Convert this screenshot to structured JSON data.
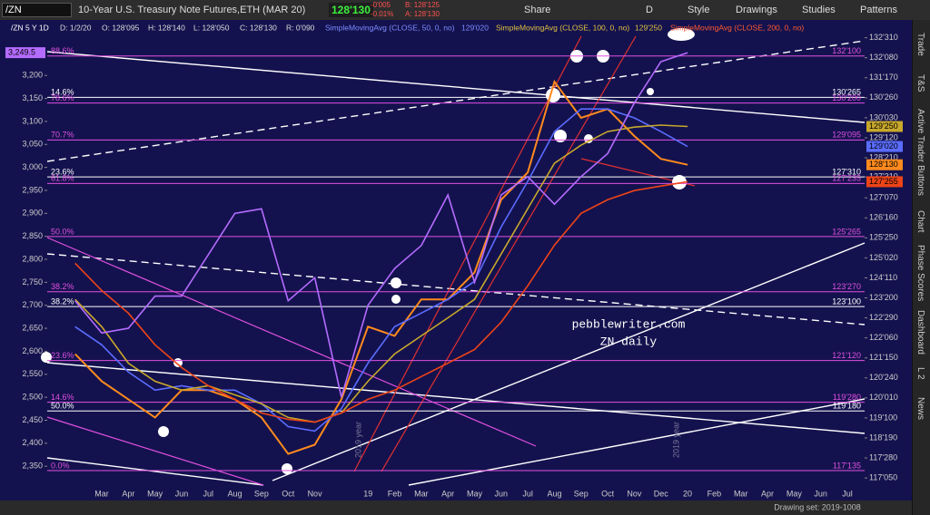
{
  "toolbar": {
    "symbol": "/ZN",
    "description": "10-Year U.S. Treasury Note Futures,ETH (MAR 20)",
    "price": "128'130",
    "change": "-0'005",
    "change_pct": "-0.01%",
    "bid": "B: 128'125",
    "ask": "A: 128'130",
    "buttons": [
      "Share",
      "D",
      "Style",
      "Drawings",
      "Studies",
      "Patterns"
    ]
  },
  "info_bar": {
    "date": "D: 1/2/20",
    "open": "O: 128'095",
    "high": "H: 128'140",
    "low": "L: 128'050",
    "close": "C: 128'130",
    "range": "R: 0'090"
  },
  "side_tabs": [
    "Trade",
    "T&S",
    "Active Trader",
    "Buttons",
    "Chart",
    "Phase Scores",
    "Dashboard",
    "L 2",
    "News"
  ],
  "watermark": [
    "pebblewriter.com",
    "ZN daily"
  ],
  "status": "Drawing set: 2019-1008",
  "chart_data": {
    "type": "line",
    "categories": [
      null,
      "Mar",
      "Apr",
      "May",
      "Jun",
      "Jul",
      "Aug",
      "Sep",
      "Oct",
      "Nov",
      null,
      "19",
      "Feb",
      "Mar",
      "Apr",
      "May",
      "Jun",
      "Jul",
      "Aug",
      "Sep",
      "Oct",
      "Nov",
      "Dec",
      "20",
      "Feb",
      "Mar",
      "Apr",
      "May",
      "Jun",
      "Jul"
    ],
    "series": [
      {
        "name": "/ZN 5 Y 1D",
        "color": "#ff8a1e",
        "values": [
          121.61,
          120.63,
          119.98,
          119.33,
          120.31,
          120.31,
          119.98,
          119.33,
          118.02,
          118.35,
          119.98,
          122.59,
          122.26,
          123.57,
          123.57,
          124.54,
          127.15,
          128.13,
          131.39,
          130.09,
          130.41,
          129.44,
          128.62,
          128.40625,
          null,
          null,
          null,
          null,
          null,
          null
        ],
        "value_labels": [
          null,
          null,
          null,
          null,
          null,
          null,
          null,
          null,
          null,
          null,
          null,
          null,
          null,
          null,
          null,
          null,
          null,
          null,
          null,
          null,
          null,
          null,
          null,
          "128'130",
          null,
          null,
          null,
          null,
          null,
          null
        ]
      },
      {
        "name": "SimpleMovingAvg (CLOSE, 50, 0, no)",
        "color": "#5a6cff",
        "values": [
          122.59,
          121.94,
          120.96,
          120.31,
          120.47,
          120.31,
          120.31,
          119.82,
          119.0,
          118.84,
          119.65,
          121.28,
          122.59,
          123.08,
          123.57,
          124.22,
          126.17,
          127.81,
          129.6,
          130.41,
          130.41,
          130.09,
          129.6,
          129.0625,
          null,
          null,
          null,
          null,
          null,
          null
        ],
        "value_labels": [
          null,
          null,
          null,
          null,
          null,
          null,
          null,
          null,
          null,
          null,
          null,
          null,
          null,
          null,
          null,
          null,
          null,
          null,
          null,
          null,
          null,
          null,
          null,
          "129'020",
          null,
          null,
          null,
          null,
          null,
          null
        ]
      },
      {
        "name": "SimpleMovingAvg (CLOSE, 100, 0, no)",
        "color": "#c8a82c",
        "values": [
          123.57,
          122.59,
          121.28,
          120.63,
          120.31,
          120.47,
          120.14,
          119.82,
          119.33,
          119.16,
          119.49,
          120.63,
          121.61,
          122.26,
          122.91,
          123.57,
          125.2,
          126.83,
          128.46,
          129.11,
          129.6,
          129.76,
          129.83,
          129.78125,
          null,
          null,
          null,
          null,
          null,
          null
        ],
        "value_labels": [
          null,
          null,
          null,
          null,
          null,
          null,
          null,
          null,
          null,
          null,
          null,
          null,
          null,
          null,
          null,
          null,
          null,
          null,
          null,
          null,
          null,
          null,
          null,
          "129'250",
          null,
          null,
          null,
          null,
          null,
          null
        ]
      },
      {
        "name": "SimpleMovingAvg (CLOSE, 200, 0, no)",
        "color": "#ee4418",
        "values": [
          124.87,
          123.89,
          123.08,
          121.94,
          121.12,
          120.47,
          119.98,
          119.49,
          119.26,
          119.16,
          119.49,
          119.98,
          120.31,
          120.8,
          121.28,
          121.77,
          122.75,
          124.06,
          125.52,
          126.66,
          127.15,
          127.48,
          127.64,
          127.796875,
          null,
          null,
          null,
          null,
          null,
          null
        ],
        "value_labels": [
          null,
          null,
          null,
          null,
          null,
          null,
          null,
          null,
          null,
          null,
          null,
          null,
          null,
          null,
          null,
          null,
          null,
          null,
          null,
          null,
          null,
          null,
          null,
          "127'255",
          null,
          null,
          null,
          null,
          null,
          null
        ]
      },
      {
        "axis": "y2",
        "color": "#b46cff",
        "values": [
          2710,
          2640,
          2650,
          2720,
          2720,
          2810,
          2900,
          2910,
          2710,
          2760,
          2500,
          2700,
          2780,
          2830,
          2940,
          2750,
          2940,
          2980,
          2920,
          2980,
          3030,
          3140,
          3230,
          3249.5,
          null,
          null,
          null,
          null,
          null,
          null
        ],
        "value_labels": [
          null,
          null,
          null,
          null,
          null,
          null,
          null,
          null,
          null,
          null,
          null,
          null,
          null,
          null,
          null,
          null,
          null,
          null,
          null,
          null,
          null,
          null,
          null,
          "3,249.5",
          null,
          null,
          null,
          null,
          null,
          null
        ]
      }
    ],
    "ylim": [
      116.9,
      133.25
    ],
    "yticks": [
      {
        "value": 132.96875,
        "label": "132'310"
      },
      {
        "value": 132.25,
        "label": "132'080"
      },
      {
        "value": 131.53125,
        "label": "131'170"
      },
      {
        "value": 130.8125,
        "label": "130'260"
      },
      {
        "value": 130.09375,
        "label": "130'030"
      },
      {
        "value": 129.375,
        "label": "129'120"
      },
      {
        "value": 128.65625,
        "label": "128'210"
      },
      {
        "value": 127.96875,
        "label": "127'310"
      },
      {
        "value": 127.21875,
        "label": "127'070"
      },
      {
        "value": 126.5,
        "label": "126'160"
      },
      {
        "value": 125.78125,
        "label": "125'250"
      },
      {
        "value": 125.0625,
        "label": "125'020"
      },
      {
        "value": 124.34375,
        "label": "124'110"
      },
      {
        "value": 123.625,
        "label": "123'200"
      },
      {
        "value": 122.90625,
        "label": "122'290"
      },
      {
        "value": 122.1875,
        "label": "122'060"
      },
      {
        "value": 121.46875,
        "label": "121'150"
      },
      {
        "value": 120.75,
        "label": "120'240"
      },
      {
        "value": 120.03125,
        "label": "120'010"
      },
      {
        "value": 119.3125,
        "label": "119'100"
      },
      {
        "value": 118.59375,
        "label": "118'190"
      },
      {
        "value": 117.875,
        "label": "117'280"
      },
      {
        "value": 117.15625,
        "label": "117'050"
      }
    ],
    "y2lim": [
      2309,
      3299
    ],
    "y2ticks": [
      {
        "value": 3200,
        "label": "3,200"
      },
      {
        "value": 3150,
        "label": "3,150"
      },
      {
        "value": 3100,
        "label": "3,100"
      },
      {
        "value": 3050,
        "label": "3,050"
      },
      {
        "value": 3000,
        "label": "3,000"
      },
      {
        "value": 2950,
        "label": "2,950"
      },
      {
        "value": 2900,
        "label": "2,900"
      },
      {
        "value": 2850,
        "label": "2,850"
      },
      {
        "value": 2800,
        "label": "2,800"
      },
      {
        "value": 2750,
        "label": "2,750"
      },
      {
        "value": 2700,
        "label": "2,700"
      },
      {
        "value": 2650,
        "label": "2,650"
      },
      {
        "value": 2600,
        "label": "2,600"
      },
      {
        "value": 2550,
        "label": "2,550"
      },
      {
        "value": 2500,
        "label": "2,500"
      },
      {
        "value": 2450,
        "label": "2,450"
      },
      {
        "value": 2400,
        "label": "2,400"
      },
      {
        "value": 2350,
        "label": "2,350"
      }
    ],
    "levels": [
      {
        "label": "88.6%",
        "price_label": "132'100",
        "value": 132.3125,
        "color": "#e050e0"
      },
      {
        "label": "14.6%",
        "price_label": "130'265",
        "value": 130.828125,
        "color": "#ffffff"
      },
      {
        "label": "78.6%",
        "price_label": "130'200",
        "value": 130.625,
        "color": "#e050e0"
      },
      {
        "label": "70.7%",
        "price_label": "129'095",
        "value": 129.296875,
        "color": "#e050e0"
      },
      {
        "label": "23.6%",
        "price_label": "127'310",
        "value": 127.96875,
        "color": "#ffffff"
      },
      {
        "label": "61.8%",
        "price_label": "127'235",
        "value": 127.734375,
        "color": "#e050e0"
      },
      {
        "label": "50.0%",
        "price_label": "125'265",
        "value": 125.828125,
        "color": "#e050e0"
      },
      {
        "label": "38.2%",
        "price_label": "123'270",
        "value": 123.84375,
        "color": "#e050e0"
      },
      {
        "label": "38.2%",
        "price_label": "123'100",
        "value": 123.3125,
        "color": "#ffffff"
      },
      {
        "label": "23.6%",
        "price_label": "121'120",
        "value": 121.375,
        "color": "#e050e0"
      },
      {
        "label": "14.6%",
        "price_label": "119'280",
        "value": 119.875,
        "color": "#e050e0"
      },
      {
        "label": "50.0%",
        "price_label": "119'180",
        "value": 119.5625,
        "color": "#ffffff"
      },
      {
        "label": "0.0%",
        "price_label": "117'135",
        "value": 117.421875,
        "color": "#e050e0"
      }
    ],
    "annotations": [
      "2019 year",
      "2019 year"
    ]
  }
}
